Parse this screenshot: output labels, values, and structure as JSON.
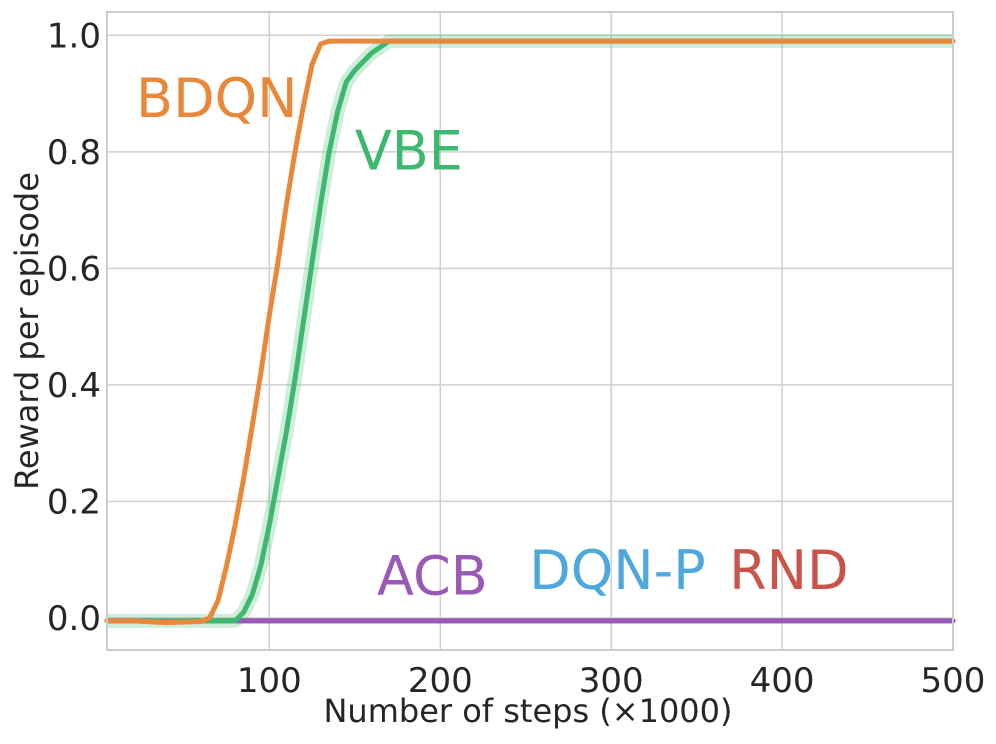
{
  "chart_data": {
    "type": "line",
    "xlabel": "Number of steps (×1000)",
    "ylabel": "Reward per episode",
    "xlim": [
      5,
      500
    ],
    "ylim": [
      -0.055,
      1.04
    ],
    "grid": true,
    "xticks": [
      100,
      200,
      300,
      400,
      500
    ],
    "xtick_labels": [
      "100",
      "200",
      "300",
      "400",
      "500"
    ],
    "yticks": [
      0.0,
      0.2,
      0.4,
      0.6,
      0.8,
      1.0
    ],
    "ytick_labels": [
      "0.0",
      "0.2",
      "0.4",
      "0.6",
      "0.8",
      "1.0"
    ],
    "series": [
      {
        "name": "BDQN",
        "color": "#e8883a",
        "x": [
          5,
          20,
          40,
          60,
          65,
          70,
          75,
          80,
          85,
          90,
          95,
          100,
          105,
          110,
          115,
          120,
          125,
          130,
          135,
          140,
          500
        ],
        "y": [
          -0.005,
          -0.005,
          -0.008,
          -0.006,
          0.0,
          0.03,
          0.09,
          0.16,
          0.24,
          0.33,
          0.42,
          0.52,
          0.61,
          0.71,
          0.8,
          0.88,
          0.95,
          0.985,
          0.99,
          0.99,
          0.99
        ],
        "label": {
          "x": 22,
          "y": 0.86
        }
      },
      {
        "name": "VBE",
        "color": "#3cb96f",
        "x": [
          5,
          50,
          70,
          80,
          85,
          90,
          95,
          100,
          105,
          110,
          115,
          120,
          125,
          130,
          135,
          140,
          145,
          150,
          160,
          170,
          180,
          500
        ],
        "y": [
          -0.005,
          -0.005,
          -0.005,
          -0.005,
          0.01,
          0.04,
          0.09,
          0.16,
          0.24,
          0.32,
          0.41,
          0.51,
          0.61,
          0.71,
          0.8,
          0.87,
          0.92,
          0.94,
          0.97,
          0.99,
          0.99,
          0.99
        ],
        "label": {
          "x": 150,
          "y": 0.77
        }
      },
      {
        "name": "ACB",
        "color": "#9b59b6",
        "x": [
          5,
          500
        ],
        "y": [
          -0.005,
          -0.005
        ],
        "label": {
          "x": 163,
          "y": 0.04
        }
      },
      {
        "name": "DQN-P",
        "color": "#4fa8dd",
        "x": [
          5,
          500
        ],
        "y": [
          -0.005,
          -0.005
        ],
        "label": {
          "x": 252,
          "y": 0.05
        }
      },
      {
        "name": "RND",
        "color": "#c9544a",
        "x": [
          5,
          500
        ],
        "y": [
          -0.005,
          -0.005
        ],
        "label": {
          "x": 369,
          "y": 0.05
        }
      }
    ]
  },
  "colors": {
    "grid": "#d0d0d0",
    "frame": "#cccccc",
    "text": "#262626"
  }
}
